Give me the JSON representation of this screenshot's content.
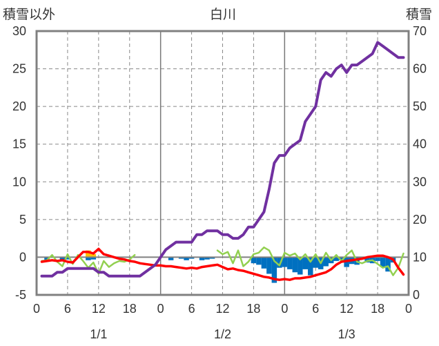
{
  "header": {
    "left_label": "積雪以外",
    "title": "白川",
    "right_label": "積雪"
  },
  "chart_data": {
    "type": "line",
    "title": "白川",
    "ylabel_left": "積雪以外",
    "ylabel_right": "積雪",
    "ylim_left": [
      -5,
      30
    ],
    "ylim_right": [
      0,
      70
    ],
    "xlim_hours": [
      0,
      72
    ],
    "yticks_left": [
      -5,
      0,
      5,
      10,
      15,
      20,
      25,
      30
    ],
    "yticks_right": [
      0,
      10,
      20,
      30,
      40,
      50,
      60,
      70
    ],
    "xtick_labels": [
      "0",
      "6",
      "12",
      "18",
      "0",
      "6",
      "12",
      "18",
      "0",
      "6",
      "12",
      "18",
      "0"
    ],
    "date_labels": [
      {
        "label": "1/1",
        "hour": 12
      },
      {
        "label": "1/2",
        "hour": 36
      },
      {
        "label": "1/3",
        "hour": 60
      }
    ],
    "day_boundaries_hours": [
      24,
      48
    ],
    "grid": true,
    "colors": {
      "snow_depth": "#7030a0",
      "temperature": "#ff0000",
      "wind": "#92d050",
      "precip_bars": "#0070c0",
      "sunshine_bars": "#ffc000",
      "zero_line": "#808080"
    },
    "series": [
      {
        "key": "snow_depth",
        "axis": "right",
        "x": [
          1,
          2,
          3,
          4,
          5,
          6,
          7,
          8,
          9,
          10,
          11,
          12,
          13,
          14,
          15,
          16,
          17,
          18,
          19,
          20,
          21,
          22,
          23,
          24,
          25,
          26,
          27,
          28,
          29,
          30,
          31,
          32,
          33,
          34,
          35,
          36,
          37,
          38,
          39,
          40,
          41,
          42,
          43,
          44,
          45,
          46,
          47,
          48,
          49,
          50,
          51,
          52,
          53,
          54,
          55,
          56,
          57,
          58,
          59,
          60,
          61,
          62,
          63,
          64,
          65,
          66,
          67,
          68,
          69,
          70,
          71
        ],
        "values": [
          5,
          5,
          5,
          6,
          6,
          7,
          7,
          7,
          7,
          7,
          7,
          6,
          6,
          5,
          5,
          5,
          5,
          5,
          5,
          5,
          6,
          7,
          8,
          10,
          12,
          13,
          14,
          14,
          14,
          14,
          16,
          16,
          17,
          17,
          17,
          16,
          16,
          15,
          15,
          16,
          18,
          18,
          20,
          22,
          28,
          35,
          37,
          37,
          39,
          40,
          41,
          46,
          48,
          50,
          57,
          59,
          58,
          60,
          61,
          59,
          61,
          61,
          62,
          63,
          64,
          67,
          66,
          65,
          64,
          63,
          63
        ],
        "unit": "cm"
      },
      {
        "key": "temperature",
        "axis": "left",
        "x": [
          1,
          2,
          3,
          4,
          5,
          6,
          7,
          8,
          9,
          10,
          11,
          12,
          13,
          14,
          15,
          16,
          17,
          18,
          19,
          20,
          21,
          22,
          23,
          24,
          25,
          26,
          27,
          28,
          29,
          30,
          31,
          32,
          33,
          34,
          35,
          36,
          37,
          38,
          39,
          40,
          41,
          42,
          43,
          44,
          45,
          46,
          47,
          48,
          49,
          50,
          51,
          52,
          53,
          54,
          55,
          56,
          57,
          58,
          59,
          60,
          61,
          62,
          63,
          64,
          65,
          66,
          67,
          68,
          69,
          70,
          71
        ],
        "values": [
          -0.6,
          -0.5,
          -0.4,
          -0.5,
          -0.4,
          -0.6,
          -0.7,
          0,
          0.7,
          0.7,
          0.5,
          1.1,
          0.4,
          0.2,
          0,
          -0.2,
          -0.3,
          -0.5,
          -0.6,
          -0.8,
          -0.9,
          -1,
          -1.1,
          -1.1,
          -1.2,
          -1.2,
          -1.3,
          -1.4,
          -1.5,
          -1.4,
          -1.5,
          -1.3,
          -1.2,
          -1.1,
          -1,
          -1.3,
          -1.6,
          -1.5,
          -1.7,
          -1.8,
          -2,
          -2.2,
          -2.4,
          -2.6,
          -2.7,
          -2.9,
          -3,
          -2.9,
          -3,
          -2.8,
          -2.8,
          -2.7,
          -2.6,
          -2.4,
          -2.2,
          -2,
          -1.6,
          -1,
          -0.6,
          -0.5,
          -0.4,
          -0.3,
          -0.2,
          0,
          0.1,
          0.2,
          0.2,
          0,
          -0.3,
          -1.4,
          -2.3
        ],
        "unit": "℃"
      },
      {
        "key": "wind",
        "axis": "left",
        "x": [
          1,
          2,
          3,
          4,
          5,
          6,
          7,
          8,
          9,
          10,
          11,
          12,
          13,
          14,
          15,
          16,
          17,
          18,
          19,
          20,
          21,
          22,
          23,
          24,
          25,
          26,
          27,
          28,
          29,
          30,
          31,
          32,
          33,
          34,
          35,
          36,
          37,
          38,
          39,
          40,
          41,
          42,
          43,
          44,
          45,
          46,
          47,
          48,
          49,
          50,
          51,
          52,
          53,
          54,
          55,
          56,
          57,
          58,
          59,
          60,
          61,
          62,
          63,
          64,
          65,
          66,
          67,
          68,
          69,
          70,
          71
        ],
        "values": [
          -0.5,
          -0.4,
          0.3,
          -0.6,
          -1.2,
          0.4,
          -0.9,
          0.3,
          -0.5,
          -1.4,
          -0.7,
          -2.2,
          -0.5,
          -1.3,
          -0.8,
          -0.5,
          -0.6,
          -0.3,
          0.3,
          null,
          null,
          null,
          null,
          null,
          null,
          null,
          null,
          null,
          null,
          null,
          null,
          null,
          null,
          null,
          0.9,
          0.4,
          0.7,
          -0.8,
          0.9,
          -1.2,
          -0.6,
          0.4,
          0.6,
          1.3,
          0.9,
          -0.5,
          -1.1,
          0.6,
          0.2,
          0.5,
          -0.3,
          0.4,
          -0.6,
          0.4,
          -0.8,
          0.6,
          -0.4,
          0.3,
          -0.5,
          0.3,
          0.9,
          -0.6,
          -0.8,
          -0.5,
          -0.4,
          -0.9,
          -1.4,
          -1.2,
          -2.4,
          -1.4,
          0.5
        ],
        "unit": "m/s"
      },
      {
        "key": "precipitation",
        "axis": "left",
        "type": "bar",
        "x": [
          2,
          5,
          6,
          10,
          11,
          26,
          28,
          29,
          30,
          32,
          33,
          34,
          42,
          43,
          44,
          45,
          46,
          47,
          48,
          49,
          50,
          51,
          52,
          53,
          54,
          55,
          56,
          57,
          58,
          59,
          60,
          61,
          62,
          63,
          64,
          65,
          66,
          67,
          68,
          69
        ],
        "values": [
          -0.5,
          -0.4,
          -0.3,
          -0.4,
          -0.3,
          -0.4,
          -0.2,
          -0.4,
          -0.2,
          -0.4,
          -0.3,
          -0.2,
          -0.8,
          -1.0,
          -1.5,
          -2.2,
          -3.4,
          -1.4,
          -1.3,
          -1.6,
          -2.0,
          -2.3,
          -1.6,
          -2.4,
          -1.4,
          -1.6,
          -1.2,
          -0.8,
          -0.5,
          -0.4,
          -1.3,
          -0.9,
          -1.0,
          -0.3,
          -0.7,
          -0.8,
          -0.5,
          -1.3,
          -1.9,
          -0.7
        ],
        "unit": "mm"
      },
      {
        "key": "sunshine",
        "axis": "left",
        "type": "bar",
        "x": [
          10,
          11
        ],
        "values": [
          0.9,
          0.4
        ],
        "unit": "h"
      }
    ]
  }
}
